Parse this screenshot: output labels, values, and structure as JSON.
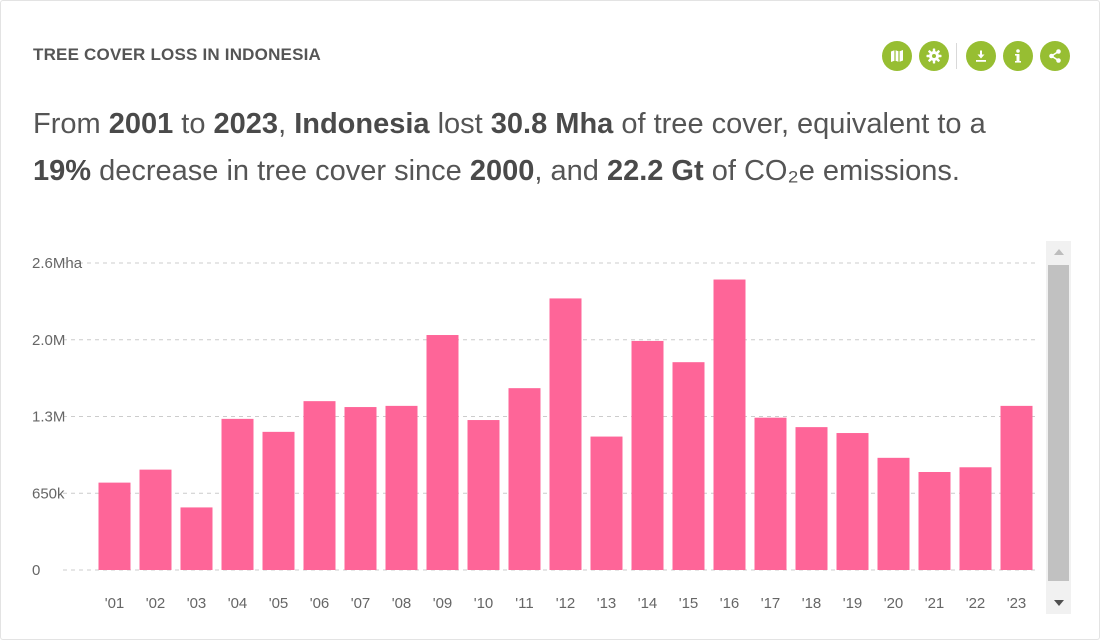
{
  "widget": {
    "title": "TREE COVER LOSS IN INDONESIA",
    "toolbar": [
      {
        "name": "map-icon"
      },
      {
        "name": "gear-icon"
      },
      {
        "name": "download-icon"
      },
      {
        "name": "info-icon"
      },
      {
        "name": "share-icon"
      }
    ],
    "accent_color": "#97be32"
  },
  "sentence": {
    "p1": "From ",
    "start_year": "2001",
    "p2": " to ",
    "end_year": "2023",
    "p3": ", ",
    "location": "Indonesia",
    "p4": " lost ",
    "loss": "30.8 Mha",
    "p5": " of tree cover, equivalent to a ",
    "percent": "19%",
    "p6": " decrease in tree cover since ",
    "base_year": "2000",
    "p7": ", and ",
    "emissions": "22.2 Gt",
    "p8": " of CO₂e emissions."
  },
  "chart_data": {
    "type": "bar",
    "bar_color": "#fe6598",
    "categories": [
      "'01",
      "'02",
      "'03",
      "'04",
      "'05",
      "'06",
      "'07",
      "'08",
      "'09",
      "'10",
      "'11",
      "'12",
      "'13",
      "'14",
      "'15",
      "'16",
      "'17",
      "'18",
      "'19",
      "'20",
      "'21",
      "'22",
      "'23"
    ],
    "values": [
      0.74,
      0.85,
      0.53,
      1.28,
      1.17,
      1.43,
      1.38,
      1.39,
      1.99,
      1.27,
      1.54,
      2.3,
      1.13,
      1.94,
      1.76,
      2.46,
      1.29,
      1.21,
      1.16,
      0.95,
      0.83,
      0.87,
      1.39
    ],
    "units": "Mha",
    "y_ticks": [
      {
        "value": 0,
        "label": "0"
      },
      {
        "value": 0.65,
        "label": "650k"
      },
      {
        "value": 1.3,
        "label": "1.3M"
      },
      {
        "value": 1.95,
        "label": "2.0M"
      },
      {
        "value": 2.6,
        "label": "2.6Mha"
      }
    ],
    "ylim": [
      0,
      2.6
    ],
    "grid": true
  }
}
